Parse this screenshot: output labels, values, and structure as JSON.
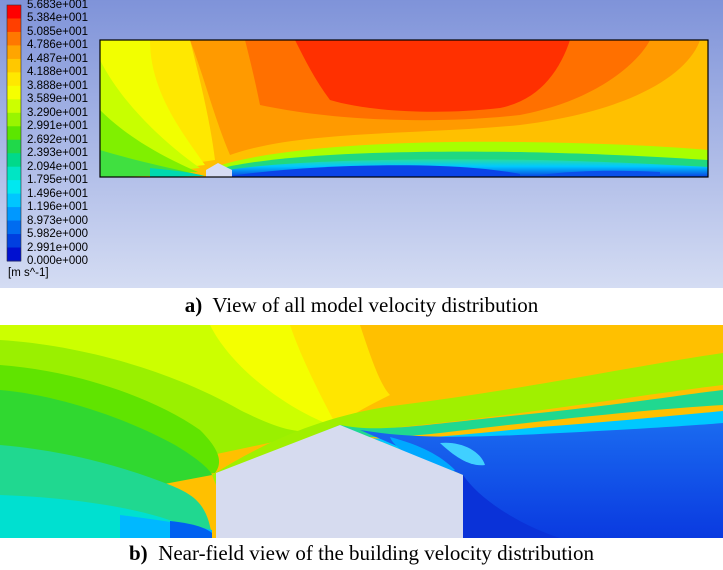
{
  "legend": {
    "ticks": [
      "5.683e+001",
      "5.384e+001",
      "5.085e+001",
      "4.786e+001",
      "4.487e+001",
      "4.188e+001",
      "3.888e+001",
      "3.589e+001",
      "3.290e+001",
      "2.991e+001",
      "2.692e+001",
      "2.393e+001",
      "2.094e+001",
      "1.795e+001",
      "1.496e+001",
      "1.196e+001",
      "8.973e+000",
      "5.982e+000",
      "2.991e+000",
      "0.000e+000"
    ],
    "unit": "[m s^-1]",
    "colors": [
      "#ff0000",
      "#ff3f00",
      "#ff7800",
      "#ffa500",
      "#ffc800",
      "#ffe800",
      "#f6ff00",
      "#ccff00",
      "#99f500",
      "#5ce600",
      "#20d84a",
      "#00d98a",
      "#00e5c4",
      "#00e8f0",
      "#00c6ff",
      "#0098ff",
      "#006cf0",
      "#003fe0",
      "#0010d0"
    ]
  },
  "captions": {
    "a": {
      "letter": "a)",
      "text": "View of all model velocity distribution"
    },
    "b": {
      "letter": "b)",
      "text": "Near-field view of the building velocity distribution"
    }
  }
}
